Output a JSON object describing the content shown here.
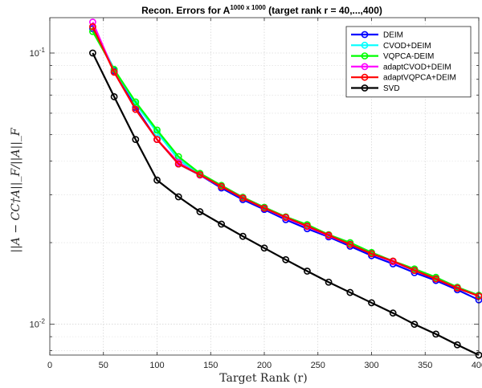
{
  "chart_data": {
    "type": "line",
    "title": {
      "prefix": "Recon. Errors for A",
      "superscript": "1000 x 1000",
      "suffix": " (target rank r = 40,...,400)"
    },
    "xlabel": "Target Rank (r)",
    "ylabel": "||A − CC†A||_F/||A||_F",
    "xlim": [
      0,
      400
    ],
    "ylim": [
      0.0077,
      0.135
    ],
    "yscale": "log",
    "grid": true,
    "legend_position": "top-right",
    "x_ticks": [
      0,
      50,
      100,
      150,
      200,
      250,
      300,
      350,
      400
    ],
    "x_tick_labels": [
      "0",
      "50",
      "100",
      "150",
      "200",
      "250",
      "300",
      "350",
      "400"
    ],
    "y_ticks": [
      0.01,
      0.1
    ],
    "y_tick_labels": [
      {
        "base": "10",
        "exp": "-2"
      },
      {
        "base": "10",
        "exp": "-1"
      }
    ],
    "x": [
      40,
      60,
      80,
      100,
      120,
      140,
      160,
      180,
      200,
      220,
      240,
      260,
      280,
      300,
      320,
      340,
      360,
      380,
      400
    ],
    "series": [
      {
        "name": "DEIM",
        "color": "#0000ff",
        "values": [
          0.123,
          0.086,
          0.063,
          0.048,
          0.039,
          0.0355,
          0.0318,
          0.0288,
          0.0265,
          0.0243,
          0.0225,
          0.021,
          0.0194,
          0.0179,
          0.0167,
          0.0155,
          0.0145,
          0.0134,
          0.0123
        ]
      },
      {
        "name": "CVOD+DEIM",
        "color": "#00ffff",
        "values": [
          0.125,
          0.087,
          0.065,
          0.051,
          0.0405,
          0.0357,
          0.0323,
          0.0292,
          0.0268,
          0.0247,
          0.0231,
          0.0213,
          0.0198,
          0.0183,
          0.017,
          0.0159,
          0.0148,
          0.0136,
          0.0127
        ]
      },
      {
        "name": "VQPCA-DEIM",
        "color": "#00ff00",
        "values": [
          0.12,
          0.087,
          0.066,
          0.052,
          0.0415,
          0.036,
          0.0325,
          0.0294,
          0.027,
          0.0249,
          0.0233,
          0.0214,
          0.02,
          0.0184,
          0.0171,
          0.016,
          0.0149,
          0.0137,
          0.0128
        ]
      },
      {
        "name": "adaptCVOD+DEIM",
        "color": "#ff00ff",
        "values": [
          0.13,
          0.085,
          0.062,
          0.048,
          0.0395,
          0.0355,
          0.0322,
          0.0292,
          0.0268,
          0.0247,
          0.0229,
          0.0212,
          0.0197,
          0.0182,
          0.017,
          0.0158,
          0.0147,
          0.0136,
          0.0127
        ]
      },
      {
        "name": "adaptVQPCA+DEIM",
        "color": "#ff0000",
        "values": [
          0.125,
          0.085,
          0.062,
          0.048,
          0.039,
          0.0356,
          0.0322,
          0.0292,
          0.0268,
          0.0248,
          0.023,
          0.0213,
          0.0197,
          0.0182,
          0.0171,
          0.0158,
          0.0147,
          0.0136,
          0.0127
        ]
      },
      {
        "name": "SVD",
        "color": "#000000",
        "values": [
          0.1,
          0.069,
          0.048,
          0.034,
          0.0295,
          0.026,
          0.0234,
          0.0211,
          0.0191,
          0.0173,
          0.0157,
          0.0143,
          0.0131,
          0.012,
          0.011,
          0.01,
          0.0092,
          0.0084,
          0.0077
        ]
      }
    ]
  }
}
